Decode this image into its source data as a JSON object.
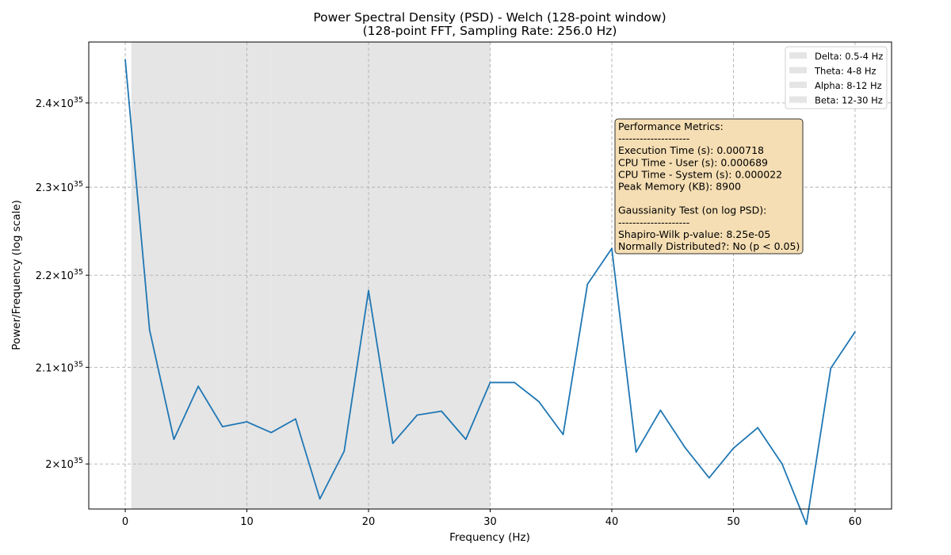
{
  "chart_data": {
    "type": "line",
    "title": "Power Spectral Density (PSD) - Welch (128-point window)",
    "subtitle": "(128-point FFT, Sampling Rate: 256.0 Hz)",
    "xlabel": "Frequency (Hz)",
    "ylabel": "Power/Frequency (log scale)",
    "y_scale": "log",
    "xlim": [
      -3,
      63
    ],
    "ylim": [
      1.955e+35,
      2.475e+35
    ],
    "x_ticks": [
      0,
      10,
      20,
      30,
      40,
      50,
      60
    ],
    "x_tick_labels": [
      "0",
      "10",
      "20",
      "30",
      "40",
      "50",
      "60"
    ],
    "y_ticks": [
      {
        "value": 2e+35,
        "mantissa": "2",
        "exp": "35"
      },
      {
        "value": 2.1e+35,
        "mantissa": "2.1",
        "exp": "35"
      },
      {
        "value": 2.2e+35,
        "mantissa": "2.2",
        "exp": "35"
      },
      {
        "value": 2.3e+35,
        "mantissa": "2.3",
        "exp": "35"
      },
      {
        "value": 2.4e+35,
        "mantissa": "2.4",
        "exp": "35"
      }
    ],
    "y_tick_times": "×10",
    "grid": true,
    "series": [
      {
        "color": "#1f77b4",
        "x": [
          0,
          2,
          4,
          6,
          8,
          10,
          12,
          14,
          16,
          18,
          20,
          22,
          24,
          26,
          28,
          30,
          32,
          34,
          36,
          38,
          40,
          42,
          44,
          46,
          48,
          50,
          52,
          54,
          56,
          58,
          60
        ],
        "y": [
          2.453e+35,
          2.14e+35,
          2.025e+35,
          2.08e+35,
          2.038e+35,
          2.043e+35,
          2.032e+35,
          2.046e+35,
          1.965e+35,
          2.013e+35,
          2.183e+35,
          2.021e+35,
          2.05e+35,
          2.054e+35,
          2.025e+35,
          2.084e+35,
          2.084e+35,
          2.064e+35,
          2.03e+35,
          2.19e+35,
          2.23e+35,
          2.012e+35,
          2.055e+35,
          2.017e+35,
          1.986e+35,
          2.016e+35,
          2.037e+35,
          2e+35,
          1.94e+35,
          2.099e+35,
          2.138e+35
        ]
      }
    ],
    "bands": [
      {
        "name": "Delta: 0.5-4 Hz",
        "from": 0.5,
        "to": 4,
        "color": "#e5e5e5"
      },
      {
        "name": "Theta: 4-8 Hz",
        "from": 4,
        "to": 8,
        "color": "#e5e5e5"
      },
      {
        "name": "Alpha: 8-12 Hz",
        "from": 8,
        "to": 12,
        "color": "#e5e5e5"
      },
      {
        "name": "Beta: 12-30 Hz",
        "from": 12,
        "to": 30,
        "color": "#e5e5e5"
      }
    ],
    "legend_position": "upper right",
    "annotation_box": {
      "position": "upper right",
      "background": "#f5deb3",
      "lines": [
        "Performance Metrics:",
        "--------------------",
        "Execution Time (s): 0.000718",
        "CPU Time - User (s): 0.000689",
        "CPU Time - System (s): 0.000022",
        "Peak Memory (KB): 8900",
        "",
        "Gaussianity Test (on log PSD):",
        "--------------------",
        "Shapiro-Wilk p-value: 8.25e-05",
        "Normally Distributed?: No (p < 0.05)"
      ]
    }
  }
}
